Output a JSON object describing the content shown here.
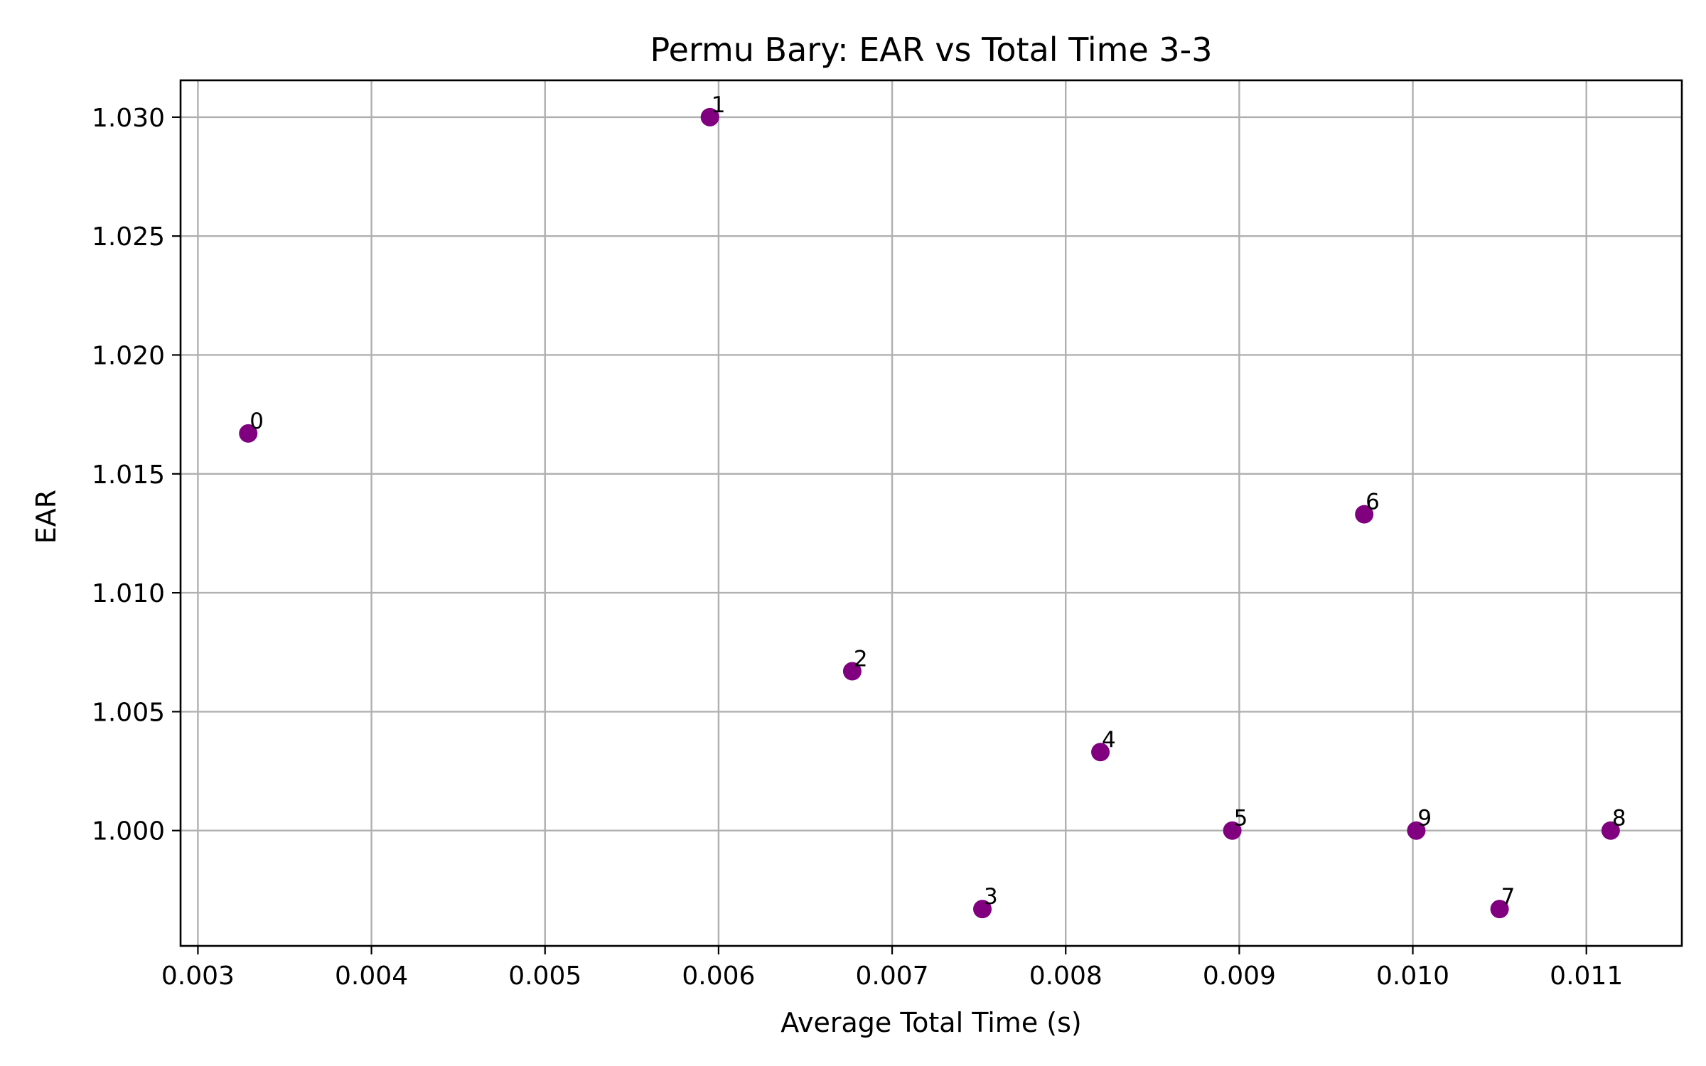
{
  "chart_data": {
    "type": "scatter",
    "title": "Permu Bary: EAR vs Total Time 3-3",
    "xlabel": "Average Total Time (s)",
    "ylabel": "EAR",
    "xlim": [
      0.0029,
      0.01155
    ],
    "ylim": [
      0.99515,
      1.03155
    ],
    "xticks": [
      0.003,
      0.004,
      0.005,
      0.006,
      0.007,
      0.008,
      0.009,
      0.01,
      0.011
    ],
    "xtick_labels": [
      "0.003",
      "0.004",
      "0.005",
      "0.006",
      "0.007",
      "0.008",
      "0.009",
      "0.010",
      "0.011"
    ],
    "yticks": [
      1.0,
      1.005,
      1.01,
      1.015,
      1.02,
      1.025,
      1.03
    ],
    "ytick_labels": [
      "1.000",
      "1.005",
      "1.010",
      "1.015",
      "1.020",
      "1.025",
      "1.030"
    ],
    "grid": true,
    "marker_color": "#800080",
    "points": [
      {
        "label": "0",
        "x": 0.00329,
        "y": 1.0167
      },
      {
        "label": "1",
        "x": 0.00595,
        "y": 1.03
      },
      {
        "label": "2",
        "x": 0.00677,
        "y": 1.0067
      },
      {
        "label": "3",
        "x": 0.00752,
        "y": 0.9967
      },
      {
        "label": "4",
        "x": 0.0082,
        "y": 1.0033
      },
      {
        "label": "5",
        "x": 0.00896,
        "y": 1.0
      },
      {
        "label": "6",
        "x": 0.00972,
        "y": 1.0133
      },
      {
        "label": "7",
        "x": 0.0105,
        "y": 0.9967
      },
      {
        "label": "8",
        "x": 0.01114,
        "y": 1.0
      },
      {
        "label": "9",
        "x": 0.01002,
        "y": 1.0
      }
    ]
  }
}
